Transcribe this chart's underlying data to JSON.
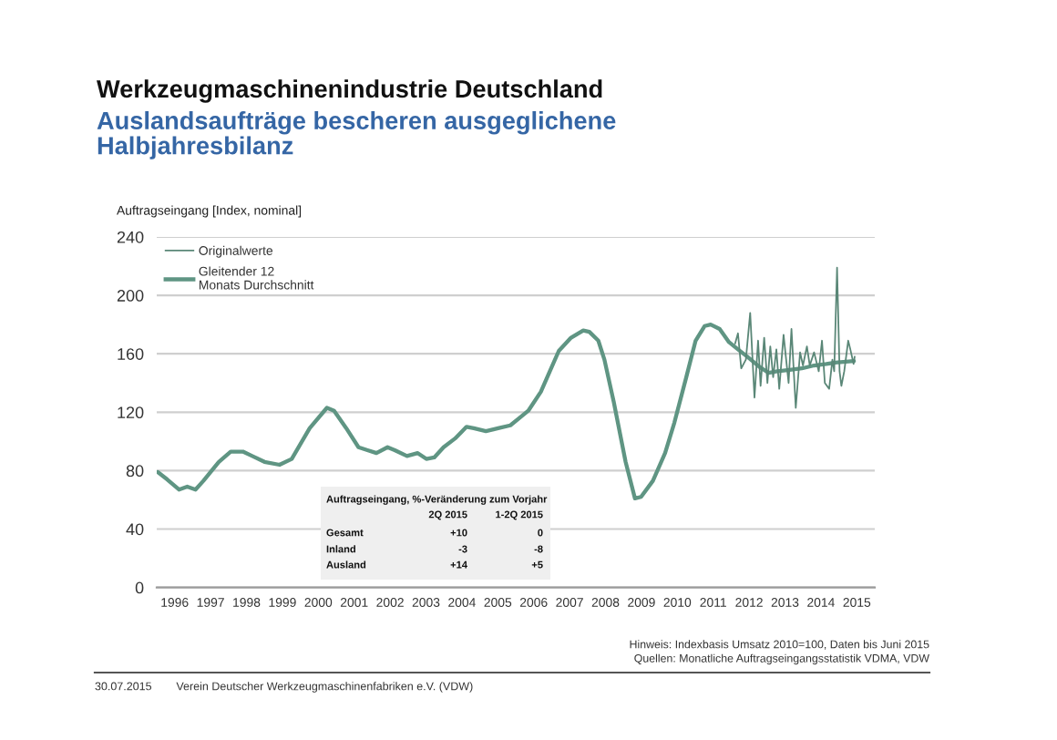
{
  "chart_data": {
    "type": "line",
    "title": "Werkzeugmaschinenindustrie Deutschland",
    "subtitle": "Auslandsaufträge bescheren ausgeglichene\nHalbjahresbilanz",
    "ylabel": "Auftragseingang [Index, nominal]",
    "xlim": [
      1996,
      2016
    ],
    "xticks": [
      {
        "value": 1996.5,
        "label": "1996"
      },
      {
        "value": 1997.5,
        "label": "1997"
      },
      {
        "value": 1998.5,
        "label": "1998"
      },
      {
        "value": 1999.5,
        "label": "1999"
      },
      {
        "value": 2000.5,
        "label": "2000"
      },
      {
        "value": 2001.5,
        "label": "2001"
      },
      {
        "value": 2002.5,
        "label": "2002"
      },
      {
        "value": 2003.5,
        "label": "2003"
      },
      {
        "value": 2004.5,
        "label": "2004"
      },
      {
        "value": 2005.5,
        "label": "2005"
      },
      {
        "value": 2006.5,
        "label": "2006"
      },
      {
        "value": 2007.5,
        "label": "2007"
      },
      {
        "value": 2008.5,
        "label": "2008"
      },
      {
        "value": 2009.5,
        "label": "2009"
      },
      {
        "value": 2010.5,
        "label": "2010"
      },
      {
        "value": 2011.5,
        "label": "2011"
      },
      {
        "value": 2012.5,
        "label": "2012"
      },
      {
        "value": 2013.5,
        "label": "2013"
      },
      {
        "value": 2014.5,
        "label": "2014"
      },
      {
        "value": 2015.5,
        "label": "2015"
      }
    ],
    "ylim": [
      0,
      240
    ],
    "yticks": [
      0,
      40,
      80,
      120,
      160,
      200,
      240
    ],
    "grid": "y",
    "legend": "top left",
    "series": [
      {
        "name": "Originalwerte",
        "color": "#5a8777",
        "x": [
          2012.11,
          2012.19,
          2012.28,
          2012.41,
          2012.53,
          2012.65,
          2012.75,
          2012.82,
          2012.92,
          2013.01,
          2013.09,
          2013.17,
          2013.26,
          2013.34,
          2013.46,
          2013.6,
          2013.68,
          2013.8,
          2013.92,
          2014.0,
          2014.11,
          2014.19,
          2014.31,
          2014.44,
          2014.53,
          2014.61,
          2014.73,
          2014.82,
          2014.87,
          2014.95,
          2015.02,
          2015.07,
          2015.15,
          2015.26,
          2015.32,
          2015.41,
          2015.44
        ],
        "values": [
          167,
          174,
          150,
          156,
          188,
          130,
          169,
          138,
          171,
          140,
          165,
          144,
          163,
          136,
          173,
          140,
          177,
          123,
          161,
          152,
          165,
          152,
          161,
          148,
          169,
          140,
          136,
          156,
          148,
          219,
          148,
          138,
          148,
          169,
          163,
          153,
          158
        ]
      },
      {
        "name": "Gleitender 12\nMonats Durchschnitt",
        "color": "#5f9583",
        "x": [
          1996.03,
          1996.29,
          1996.62,
          1996.85,
          1997.08,
          1997.3,
          1997.73,
          1998.06,
          1998.4,
          1998.66,
          1999.0,
          1999.42,
          1999.76,
          2000.26,
          2000.74,
          2000.94,
          2001.28,
          2001.62,
          2001.87,
          2002.12,
          2002.43,
          2002.63,
          2002.97,
          2003.27,
          2003.51,
          2003.73,
          2003.99,
          2004.31,
          2004.63,
          2004.83,
          2005.17,
          2005.51,
          2005.85,
          2006.15,
          2006.35,
          2006.7,
          2006.95,
          2007.2,
          2007.54,
          2007.88,
          2008.05,
          2008.3,
          2008.47,
          2008.73,
          2009.06,
          2009.32,
          2009.49,
          2009.82,
          2010.16,
          2010.42,
          2010.75,
          2011.01,
          2011.26,
          2011.43,
          2011.68,
          2011.94,
          2012.19,
          2012.45,
          2012.79,
          2013.04,
          2013.29,
          2013.63,
          2013.97,
          2014.31,
          2014.65,
          2014.9,
          2015.42
        ],
        "values": [
          79,
          74,
          67,
          69,
          67,
          73,
          86,
          93,
          93,
          90,
          86,
          84,
          88,
          109,
          123,
          121,
          109,
          96,
          94,
          92,
          96,
          94,
          90,
          92,
          88,
          89,
          96,
          102,
          110,
          109,
          107,
          109,
          111,
          117,
          121,
          134,
          148,
          162,
          171,
          176,
          175,
          169,
          156,
          127,
          86,
          61,
          62,
          73,
          92,
          113,
          144,
          169,
          179,
          180,
          177,
          168,
          163,
          158,
          151,
          147,
          148,
          149,
          150,
          152,
          153,
          154,
          155
        ]
      }
    ],
    "annotations": [
      "Auftragseingang, %-Veränderung zum Vorjahr",
      "\t2Q 2015\t1-2Q 2015",
      "Gesamt\t+10\t0",
      "Inland\t-3\t-8",
      "Ausland\t+14\t+5",
      "Hinweis: Indexbasis Umsatz 2010=100, Daten bis Juni 2015",
      "Quellen: Monatliche Auftragseingangsstatistik VDMA, VDW",
      "30.07.2015",
      "Verein Deutscher Werkzeugmaschinenfabriken e.V. (VDW)"
    ]
  }
}
